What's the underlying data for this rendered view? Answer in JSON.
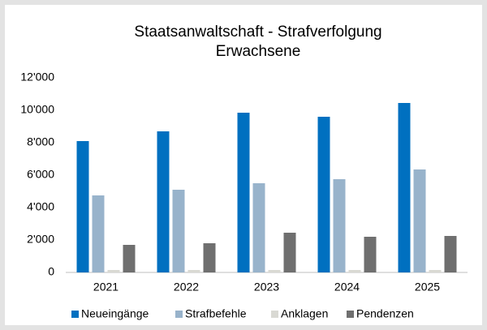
{
  "chart_data": {
    "type": "bar",
    "title": [
      "Staatsanwaltschaft - Strafverfolgung",
      "Erwachsene"
    ],
    "categories": [
      "2021",
      "2022",
      "2023",
      "2024",
      "2025"
    ],
    "series": [
      {
        "name": "Neueingänge",
        "color": "#0070c0",
        "values": [
          8100,
          8700,
          9850,
          9600,
          10450
        ]
      },
      {
        "name": "Strafbefehle",
        "color": "#98b3cb",
        "values": [
          4750,
          5100,
          5500,
          5750,
          6350
        ]
      },
      {
        "name": "Anklagen",
        "color": "#d9d9d3",
        "values": [
          150,
          150,
          150,
          150,
          150
        ]
      },
      {
        "name": "Pendenzen",
        "color": "#6f6f6f",
        "values": [
          1700,
          1800,
          2450,
          2200,
          2250
        ]
      }
    ],
    "ylim": [
      0,
      12000
    ],
    "yticks": [
      0,
      {
        "value": 2000,
        "label": "2'000"
      },
      {
        "value": 4000,
        "label": "4'000"
      },
      {
        "value": 6000,
        "label": "6'000"
      },
      {
        "value": 8000,
        "label": "8'000"
      },
      {
        "value": 10000,
        "label": "10'000"
      },
      {
        "value": 12000,
        "label": "12'000"
      }
    ],
    "grid": false
  }
}
